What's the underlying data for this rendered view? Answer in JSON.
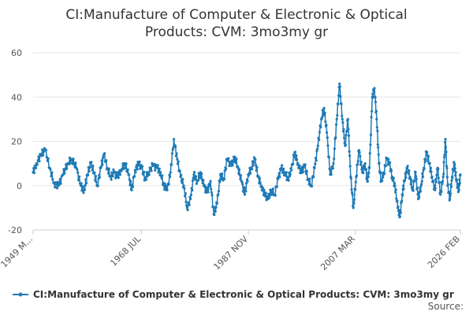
{
  "chart_data": {
    "type": "line",
    "title_lines": [
      "CI:Manufacture of Computer & Electronic & Optical",
      "Products: CVM: 3mo3my gr"
    ],
    "series_name": "CI:Manufacture of Computer & Electronic & Optical Products: CVM: 3mo3my gr",
    "source_label": "Source:",
    "color": "#1f7bb6",
    "xlabel": "",
    "ylabel": "",
    "x_range": [
      1949.0,
      2026.1
    ],
    "ylim": [
      -20,
      60
    ],
    "y_ticks": [
      -20,
      0,
      20,
      40,
      60
    ],
    "x_ticks": [
      {
        "label": "1949 M...",
        "x": 1949.0
      },
      {
        "label": "1968 JUL",
        "x": 1968.5
      },
      {
        "label": "1987 NOV",
        "x": 1987.83
      },
      {
        "label": "2007 MAR",
        "x": 2007.17
      },
      {
        "label": "2026 FEB",
        "x": 2026.1
      }
    ],
    "anchors": [
      [
        1949.0,
        6
      ],
      [
        1949.6,
        10
      ],
      [
        1950.4,
        14
      ],
      [
        1951.2,
        16
      ],
      [
        1952.0,
        8
      ],
      [
        1952.8,
        1
      ],
      [
        1953.6,
        0
      ],
      [
        1954.4,
        5
      ],
      [
        1955.2,
        10
      ],
      [
        1956.0,
        12
      ],
      [
        1956.8,
        8
      ],
      [
        1957.6,
        0
      ],
      [
        1958.2,
        -2
      ],
      [
        1958.8,
        5
      ],
      [
        1959.4,
        10
      ],
      [
        1960.0,
        6
      ],
      [
        1960.6,
        0
      ],
      [
        1961.2,
        8
      ],
      [
        1961.8,
        14
      ],
      [
        1962.4,
        8
      ],
      [
        1963.0,
        4
      ],
      [
        1963.6,
        6
      ],
      [
        1964.2,
        4
      ],
      [
        1964.8,
        7
      ],
      [
        1965.6,
        10
      ],
      [
        1966.2,
        5
      ],
      [
        1966.8,
        -2
      ],
      [
        1967.4,
        7
      ],
      [
        1968.0,
        10
      ],
      [
        1968.6,
        8
      ],
      [
        1969.2,
        3
      ],
      [
        1969.8,
        6
      ],
      [
        1970.6,
        9
      ],
      [
        1971.4,
        8
      ],
      [
        1972.0,
        6
      ],
      [
        1972.6,
        0
      ],
      [
        1973.2,
        -2
      ],
      [
        1973.8,
        6
      ],
      [
        1974.4,
        21
      ],
      [
        1975.0,
        12
      ],
      [
        1975.6,
        4
      ],
      [
        1976.2,
        0
      ],
      [
        1976.8,
        -10
      ],
      [
        1977.4,
        -6
      ],
      [
        1978.0,
        5
      ],
      [
        1978.6,
        2
      ],
      [
        1979.2,
        6
      ],
      [
        1979.8,
        0
      ],
      [
        1980.4,
        -3
      ],
      [
        1981.0,
        2
      ],
      [
        1981.6,
        -13
      ],
      [
        1982.2,
        -8
      ],
      [
        1982.8,
        5
      ],
      [
        1983.4,
        3
      ],
      [
        1984.0,
        12
      ],
      [
        1984.8,
        9
      ],
      [
        1985.4,
        13
      ],
      [
        1986.0,
        8
      ],
      [
        1986.6,
        2
      ],
      [
        1987.2,
        -4
      ],
      [
        1987.8,
        5
      ],
      [
        1988.4,
        8
      ],
      [
        1989.0,
        12
      ],
      [
        1989.6,
        4
      ],
      [
        1990.2,
        0
      ],
      [
        1990.8,
        -4
      ],
      [
        1991.4,
        -6
      ],
      [
        1992.0,
        -2
      ],
      [
        1992.6,
        -4
      ],
      [
        1993.2,
        3
      ],
      [
        1993.8,
        8
      ],
      [
        1994.4,
        6
      ],
      [
        1995.0,
        3
      ],
      [
        1995.6,
        7
      ],
      [
        1996.2,
        15
      ],
      [
        1996.8,
        10
      ],
      [
        1997.4,
        6
      ],
      [
        1998.0,
        9
      ],
      [
        1998.6,
        3
      ],
      [
        1999.2,
        0
      ],
      [
        1999.8,
        8
      ],
      [
        2000.4,
        18
      ],
      [
        2001.0,
        30
      ],
      [
        2001.5,
        35
      ],
      [
        2002.0,
        24
      ],
      [
        2002.6,
        5
      ],
      [
        2003.2,
        10
      ],
      [
        2003.8,
        30
      ],
      [
        2004.3,
        46
      ],
      [
        2004.8,
        30
      ],
      [
        2005.3,
        18
      ],
      [
        2005.8,
        30
      ],
      [
        2006.3,
        4
      ],
      [
        2006.8,
        -10
      ],
      [
        2007.3,
        4
      ],
      [
        2007.8,
        16
      ],
      [
        2008.4,
        6
      ],
      [
        2008.9,
        10
      ],
      [
        2009.3,
        2
      ],
      [
        2009.7,
        8
      ],
      [
        2010.2,
        40
      ],
      [
        2010.6,
        44
      ],
      [
        2011.0,
        30
      ],
      [
        2011.4,
        10
      ],
      [
        2011.8,
        2
      ],
      [
        2012.3,
        6
      ],
      [
        2012.8,
        12
      ],
      [
        2013.3,
        10
      ],
      [
        2013.8,
        4
      ],
      [
        2014.3,
        0
      ],
      [
        2014.8,
        -10
      ],
      [
        2015.2,
        -14
      ],
      [
        2015.6,
        -4
      ],
      [
        2016.0,
        2
      ],
      [
        2016.5,
        8
      ],
      [
        2017.0,
        4
      ],
      [
        2017.5,
        -2
      ],
      [
        2018.0,
        6
      ],
      [
        2018.5,
        -6
      ],
      [
        2019.0,
        0
      ],
      [
        2019.5,
        8
      ],
      [
        2020.0,
        15
      ],
      [
        2020.5,
        10
      ],
      [
        2021.0,
        4
      ],
      [
        2021.5,
        -2
      ],
      [
        2022.0,
        8
      ],
      [
        2022.5,
        -4
      ],
      [
        2023.0,
        4
      ],
      [
        2023.4,
        21
      ],
      [
        2023.8,
        0
      ],
      [
        2024.2,
        -6
      ],
      [
        2024.6,
        4
      ],
      [
        2025.0,
        10
      ],
      [
        2025.4,
        2
      ],
      [
        2025.8,
        -2
      ],
      [
        2026.1,
        5
      ]
    ]
  }
}
